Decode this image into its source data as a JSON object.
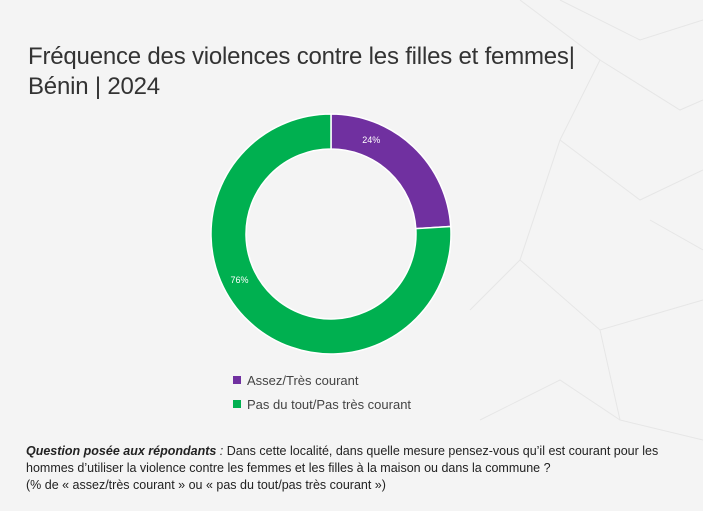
{
  "title": {
    "line1": "Fréquence des violences contre les filles et femmes|",
    "line2": "Bénin | 2024"
  },
  "colors": {
    "purple": "#7030a0",
    "green": "#00b050",
    "background": "#f4f4f4"
  },
  "chart_data": {
    "type": "pie",
    "style": "donut",
    "categories": [
      "Assez/Très courant",
      "Pas du tout/Pas très courant"
    ],
    "values": [
      24,
      76
    ],
    "labels": [
      "24%",
      "76%"
    ],
    "colors": [
      "#7030a0",
      "#00b050"
    ],
    "legend_position": "bottom"
  },
  "legend": [
    {
      "label": "Assez/Très courant",
      "color": "#7030a0"
    },
    {
      "label": "Pas du tout/Pas très courant",
      "color": "#00b050"
    }
  ],
  "footnote": {
    "question_label": "Question posée aux répondants",
    "question_sep": " :",
    "question_text": " Dans cette localité, dans quelle mesure pensez-vous qu’il est courant pour les hommes d’utiliser la violence contre les femmes et les filles à la maison ou dans la commune ?",
    "note": "(% de « assez/très courant » ou « pas du tout/pas très courant »)"
  }
}
